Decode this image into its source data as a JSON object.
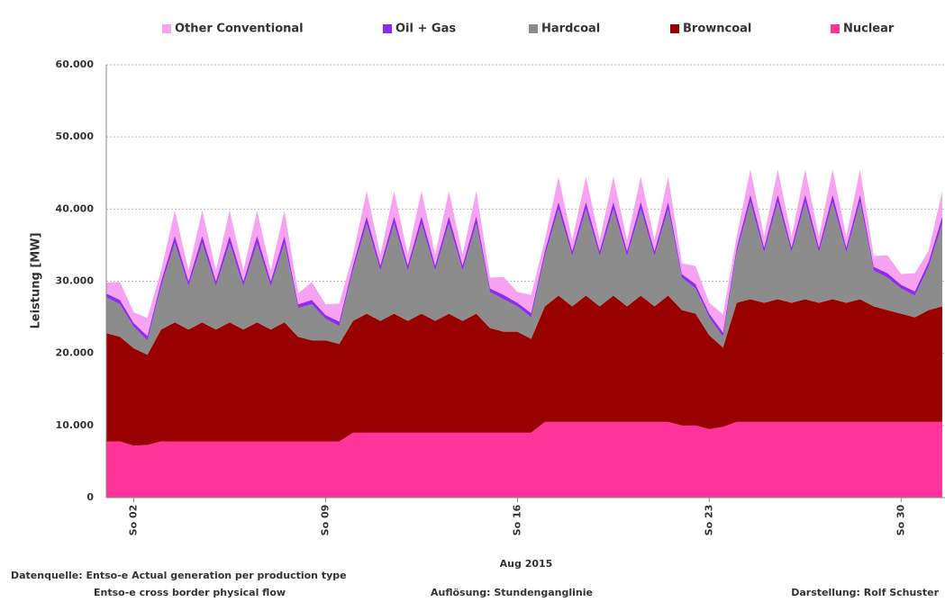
{
  "chart_data": {
    "type": "stacked_area",
    "ylabel": "Leistung   [MW]",
    "xlabel": "Aug 2015",
    "x": [
      1,
      1.5,
      2,
      2.5,
      3,
      3.5,
      4,
      4.5,
      5,
      5.5,
      6,
      6.5,
      7,
      7.5,
      8,
      8.5,
      9,
      9.5,
      10,
      10.5,
      11,
      11.5,
      12,
      12.5,
      13,
      13.5,
      14,
      14.5,
      15,
      15.5,
      16,
      16.5,
      17,
      17.5,
      18,
      18.5,
      19,
      19.5,
      20,
      20.5,
      21,
      21.5,
      22,
      22.5,
      23,
      23.5,
      24,
      24.5,
      25,
      25.5,
      26,
      26.5,
      27,
      27.5,
      28,
      28.5,
      29,
      29.5,
      30,
      30.5,
      31,
      31.5
    ],
    "xlim": [
      1,
      31.6
    ],
    "xticks": [
      {
        "value": 2,
        "label": "So 02"
      },
      {
        "value": 9,
        "label": "So 09"
      },
      {
        "value": 16,
        "label": "So 16"
      },
      {
        "value": 23,
        "label": "So 23"
      },
      {
        "value": 30,
        "label": "So 30"
      }
    ],
    "ylim": [
      0,
      60000
    ],
    "yticks": [
      0,
      {
        "value": 10000,
        "label": "10.000"
      },
      {
        "value": 20000,
        "label": "20.000"
      },
      {
        "value": 30000,
        "label": "30.000"
      },
      {
        "value": 40000,
        "label": "40.000"
      },
      {
        "value": 50000,
        "label": "50.000"
      },
      {
        "value": 60000,
        "label": "60.000"
      }
    ],
    "grid": true,
    "legend": "top",
    "series": [
      {
        "name": "Nuclear",
        "color": "#ff3399",
        "values": [
          7800,
          7800,
          7200,
          7300,
          7800,
          7800,
          7800,
          7800,
          7800,
          7800,
          7800,
          7800,
          7800,
          7800,
          7800,
          7800,
          7800,
          7800,
          9000,
          9000,
          9000,
          9000,
          9000,
          9000,
          9000,
          9000,
          9000,
          9000,
          9000,
          9000,
          9000,
          9000,
          10500,
          10500,
          10500,
          10500,
          10500,
          10500,
          10500,
          10500,
          10500,
          10500,
          10000,
          10000,
          9500,
          9800,
          10500,
          10500,
          10500,
          10500,
          10500,
          10500,
          10500,
          10500,
          10500,
          10500,
          10500,
          10500,
          10500,
          10500,
          10500,
          10500
        ]
      },
      {
        "name": "Browncoal",
        "color": "#990000",
        "values": [
          15000,
          14500,
          13500,
          12500,
          15500,
          16500,
          15500,
          16500,
          15500,
          16500,
          15500,
          16500,
          15500,
          16500,
          14500,
          14000,
          14000,
          13500,
          15500,
          16500,
          15500,
          16500,
          15500,
          16500,
          15500,
          16500,
          15500,
          16500,
          14500,
          14000,
          14000,
          13000,
          16000,
          17500,
          16000,
          17500,
          16000,
          17500,
          16000,
          17500,
          16000,
          17500,
          16000,
          15500,
          13000,
          11000,
          16500,
          17000,
          16500,
          17000,
          16500,
          17000,
          16500,
          17000,
          16500,
          17000,
          16000,
          15500,
          15000,
          14500,
          15500,
          16000
        ]
      },
      {
        "name": "Hardcoal",
        "color": "#8c8c8c",
        "values": [
          5000,
          4500,
          3000,
          2000,
          6000,
          11000,
          6000,
          11000,
          6000,
          11000,
          6000,
          11000,
          6000,
          11000,
          4000,
          5000,
          3000,
          2500,
          7000,
          12500,
          7000,
          12500,
          7000,
          12500,
          7000,
          12500,
          7000,
          12500,
          5000,
          4500,
          3500,
          3000,
          7000,
          12000,
          7000,
          12000,
          7000,
          12000,
          7000,
          12000,
          7000,
          12000,
          4500,
          3500,
          2500,
          1500,
          7000,
          13500,
          7000,
          13500,
          7000,
          13500,
          7000,
          13500,
          7000,
          13500,
          5000,
          4500,
          3500,
          3000,
          6000,
          11500
        ]
      },
      {
        "name": "Oil + Gas",
        "color": "#8f2bf0",
        "values": [
          500,
          600,
          500,
          600,
          700,
          1000,
          700,
          1000,
          700,
          1000,
          700,
          1000,
          700,
          1000,
          500,
          600,
          500,
          600,
          700,
          1000,
          700,
          1000,
          700,
          1000,
          700,
          1000,
          700,
          1000,
          500,
          600,
          500,
          600,
          700,
          1000,
          700,
          1000,
          700,
          1000,
          700,
          1000,
          700,
          1000,
          500,
          600,
          500,
          600,
          700,
          1000,
          700,
          1000,
          700,
          1000,
          700,
          1000,
          700,
          1000,
          500,
          600,
          500,
          600,
          700,
          1000
        ]
      },
      {
        "name": "Other Conventional",
        "color": "#f7a3f2",
        "values": [
          1500,
          2500,
          1500,
          2500,
          1500,
          3500,
          1500,
          3500,
          1500,
          3500,
          1500,
          3500,
          1500,
          3500,
          1500,
          2500,
          1500,
          2500,
          1500,
          3500,
          1500,
          3500,
          1500,
          3500,
          1500,
          3500,
          1500,
          3500,
          1500,
          2500,
          1500,
          2500,
          1500,
          3500,
          1500,
          3500,
          1500,
          3500,
          1500,
          3500,
          1500,
          3500,
          1500,
          2500,
          1500,
          2500,
          1500,
          3500,
          1500,
          3500,
          1500,
          3500,
          1500,
          3500,
          1500,
          3500,
          1500,
          2500,
          1500,
          2500,
          1500,
          3500
        ]
      }
    ],
    "annotations": [
      "Datenquelle: Entso-e  Actual generation per production type",
      "Entso-e  cross border physical flow",
      "Auflösung: Stundenganglinie",
      "Darstellung: Rolf Schuster"
    ]
  }
}
